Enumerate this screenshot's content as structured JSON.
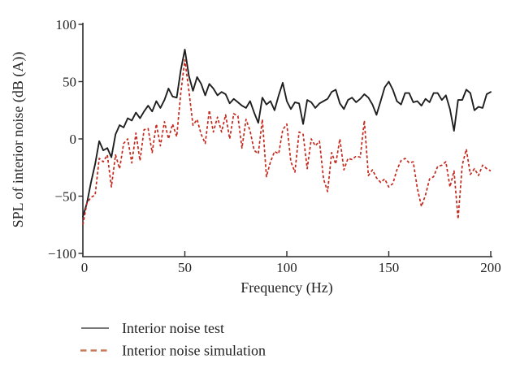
{
  "figure": {
    "background": "#ffffff",
    "type_note": "scientific line chart, no title, serif fonts"
  },
  "axes": {
    "x": {
      "label": "Frequency (Hz)",
      "min": 0,
      "max": 200,
      "tick_values": [
        0,
        50,
        100,
        150,
        200
      ],
      "tick_labels": [
        "0",
        "50",
        "100",
        "150",
        "200"
      ]
    },
    "y": {
      "label": "SPL of interior noise (dB (A))",
      "min": -100,
      "max": 100,
      "tick_values": [
        100,
        50,
        0,
        -50,
        -100
      ],
      "tick_labels": [
        "100",
        "50",
        "0",
        "−50",
        "−100"
      ]
    }
  },
  "legend": {
    "position": "bottom-left",
    "items": [
      {
        "label": "Interior noise test",
        "line_style": "solid",
        "swatch_color": "#4a4a4a"
      },
      {
        "label": "Interior noise simulation",
        "line_style": "dashed",
        "swatch_color": "#c87a58"
      }
    ]
  },
  "chart_data": {
    "type": "line",
    "title": "",
    "xlabel": "Frequency (Hz)",
    "ylabel": "SPL of interior noise (dB (A))",
    "xlim": [
      0,
      200
    ],
    "ylim": [
      -100,
      100
    ],
    "grid": false,
    "legend_position": "bottom-left",
    "x_start": 0,
    "x_step": 2,
    "series": [
      {
        "name": "Interior noise test",
        "style": "solid",
        "color": "#1f1f1f",
        "values": [
          -68,
          -56,
          -38,
          -22,
          -2,
          -10,
          -8,
          -16,
          4,
          12,
          10,
          18,
          16,
          23,
          18,
          24,
          29,
          24,
          33,
          27,
          34,
          44,
          37,
          36,
          60,
          78,
          55,
          42,
          54,
          48,
          38,
          48,
          44,
          38,
          41,
          39,
          31,
          35,
          32,
          29,
          27,
          33,
          23,
          14,
          36,
          30,
          33,
          25,
          38,
          49,
          33,
          26,
          32,
          31,
          13,
          34,
          32,
          27,
          31,
          33,
          35,
          41,
          43,
          31,
          26,
          34,
          36,
          32,
          35,
          39,
          36,
          30,
          21,
          33,
          45,
          50,
          43,
          33,
          30,
          40,
          40,
          32,
          33,
          29,
          35,
          32,
          40,
          40,
          34,
          38,
          26,
          7,
          34,
          34,
          43,
          40,
          25,
          28,
          27,
          39,
          41
        ]
      },
      {
        "name": "Interior noise simulation",
        "style": "dashed",
        "color": "#c5291d",
        "values": [
          -75,
          -56,
          -51,
          -49,
          -17,
          -20,
          -14,
          -42,
          -14,
          -26,
          -4,
          0,
          -21,
          5,
          -19,
          8,
          9,
          -12,
          13,
          -6,
          15,
          0,
          13,
          2,
          40,
          69,
          42,
          12,
          17,
          4,
          -4,
          25,
          6,
          19,
          6,
          21,
          0,
          22,
          20,
          -8,
          17,
          7,
          -10,
          -13,
          17,
          -33,
          -20,
          -11,
          -13,
          8,
          13,
          -20,
          -29,
          6,
          4,
          -26,
          0,
          -6,
          -2,
          -35,
          -46,
          -12,
          -22,
          0,
          -27,
          -17,
          -18,
          -15,
          -16,
          16,
          -32,
          -27,
          -34,
          -38,
          -35,
          -42,
          -39,
          -27,
          -19,
          -17,
          -21,
          -20,
          -43,
          -59,
          -49,
          -35,
          -33,
          -24,
          -23,
          -20,
          -42,
          -28,
          -70,
          -23,
          -9,
          -31,
          -26,
          -32,
          -23,
          -26,
          -28
        ]
      }
    ]
  }
}
